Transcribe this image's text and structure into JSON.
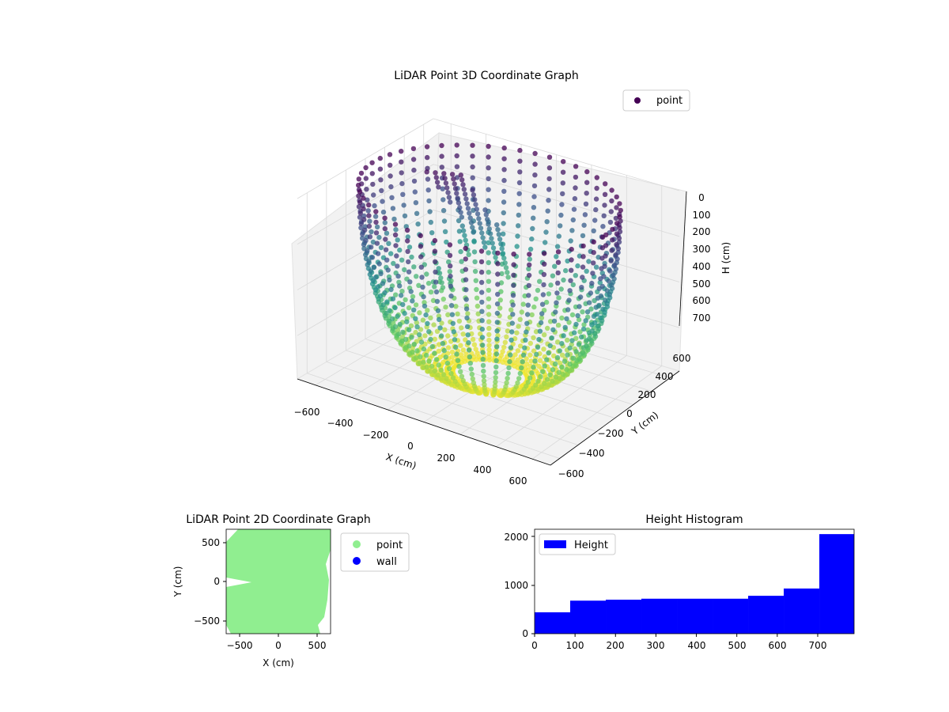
{
  "colors": {
    "background": "#ffffff",
    "pane": "#f2f2f2",
    "grid": "#d9d9d9",
    "viridis_top": "#440154",
    "viridis_mid": "#21918c",
    "viridis_bottom": "#fde725",
    "point_2d": "#90ee90",
    "wall_2d": "#0000ff",
    "histogram": "#0000ff"
  },
  "chart_data": [
    {
      "type": "scatter",
      "projection": "3d",
      "title": "LiDAR Point 3D Coordinate Graph",
      "xlabel": "X (cm)",
      "ylabel": "Y (cm)",
      "zlabel": "H (cm)",
      "xlim": [
        -700,
        700
      ],
      "ylim": [
        -700,
        700
      ],
      "zlim": [
        790,
        0
      ],
      "z_inverted": true,
      "xticks": [
        "−600",
        "−400",
        "−200",
        "0",
        "200",
        "400",
        "600"
      ],
      "yticks": [
        "−600",
        "−400",
        "−200",
        "0",
        "200",
        "400",
        "600"
      ],
      "zticks": [
        "0",
        "100",
        "200",
        "300",
        "400",
        "500",
        "600",
        "700"
      ],
      "colormap": "viridis",
      "grid": true,
      "legend": {
        "placement": "upper right",
        "entries": [
          {
            "label": "point"
          }
        ]
      },
      "surface": {
        "description_shape": "bowl",
        "rim_radius": 650,
        "depth": 790,
        "columns_open_range_deg": [
          -80,
          0
        ]
      }
    },
    {
      "type": "scatter",
      "title": "LiDAR Point 2D Coordinate Graph",
      "xlabel": "X (cm)",
      "ylabel": "Y (cm)",
      "xlim": [
        -670,
        670
      ],
      "ylim": [
        -670,
        670
      ],
      "xticks": [
        "−500",
        "0",
        "500"
      ],
      "yticks": [
        "−500",
        "0",
        "500"
      ],
      "legend": {
        "placement": "outside right",
        "entries": [
          {
            "label": "point"
          },
          {
            "label": "wall"
          }
        ]
      },
      "series": [
        {
          "name": "point"
        },
        {
          "name": "wall"
        }
      ]
    },
    {
      "type": "bar",
      "title": "Height Histogram",
      "xlim": [
        0,
        790
      ],
      "ylim": [
        0,
        2150
      ],
      "xticks": [
        "0",
        "100",
        "200",
        "300",
        "400",
        "500",
        "600",
        "700"
      ],
      "yticks": [
        "0",
        "1000",
        "2000"
      ],
      "legend": {
        "placement": "upper left",
        "entries": [
          {
            "label": "Height"
          }
        ]
      },
      "bin_edges": [
        0,
        88,
        176,
        264,
        352,
        440,
        528,
        616,
        704,
        790
      ],
      "series": [
        {
          "name": "Height",
          "values": [
            440,
            680,
            700,
            720,
            720,
            720,
            780,
            930,
            2050
          ]
        }
      ]
    }
  ]
}
